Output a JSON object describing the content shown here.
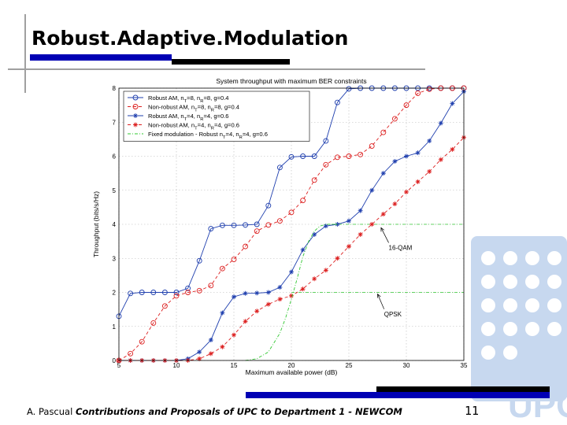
{
  "slide": {
    "title": "Robust.Adaptive.Modulation",
    "footer_author": "A. Pascual",
    "footer_title": "Contributions and Proposals of UPC to Department 1 - NEWCOM",
    "page_number": "11",
    "logo_text": "UPC"
  },
  "colors": {
    "title_bar_blue": "#0000b4",
    "title_bar_black": "#000000",
    "deco_gray": "#a0a0a0",
    "logo_blue": "#c7d8ef",
    "robust": "#1f3fae",
    "nonrobust": "#dc1f1f",
    "fixed": "#32c832"
  },
  "chart_data": {
    "type": "line",
    "title": "System throughput with maximum BER constraints",
    "xlabel": "Maximum available power (dB)",
    "ylabel": "Throughput (bits/s/Hz)",
    "xlim": [
      5,
      35
    ],
    "ylim": [
      0,
      8
    ],
    "xticks": [
      "5",
      "10",
      "15",
      "20",
      "25",
      "30",
      "35"
    ],
    "yticks": [
      "0",
      "1",
      "2",
      "3",
      "4",
      "5",
      "6",
      "7",
      "8"
    ],
    "grid": true,
    "legend_position": "top-left",
    "series": [
      {
        "name": "Robust AM, nT=8, nR=8, g=0.4",
        "legend_main": "Robust AM, n",
        "legend_sub1": "T",
        "legend_mid": "=8, n",
        "legend_sub2": "R",
        "legend_end": "=8, g=0.4",
        "color": "#1f3fae",
        "marker": "circle",
        "dash": "solid",
        "x": [
          5,
          6,
          7,
          8,
          9,
          10,
          11,
          12,
          13,
          14,
          15,
          16,
          17,
          18,
          19,
          20,
          21,
          22,
          23,
          24,
          25,
          26,
          27,
          28,
          29,
          30,
          31,
          32,
          33,
          34,
          35
        ],
        "y": [
          1.3,
          1.97,
          2.0,
          2.0,
          2.0,
          2.0,
          2.12,
          2.93,
          3.87,
          3.97,
          3.97,
          3.98,
          4.0,
          4.55,
          5.67,
          5.98,
          6.0,
          6.0,
          6.45,
          7.58,
          7.98,
          8.0,
          8.0,
          8.0,
          8.0,
          8.0,
          8.0,
          8.0,
          8.0,
          8.0,
          8.0
        ]
      },
      {
        "name": "Non-robust AM, nT=8, nR=8, g=0.4",
        "legend_main": "Non-robust AM, n",
        "legend_sub1": "T",
        "legend_mid": "=8, n",
        "legend_sub2": "R",
        "legend_end": "=8, g=0.4",
        "color": "#dc1f1f",
        "marker": "circle",
        "dash": "dashed",
        "x": [
          5,
          6,
          7,
          8,
          9,
          10,
          11,
          12,
          13,
          14,
          15,
          16,
          17,
          18,
          19,
          20,
          21,
          22,
          23,
          24,
          25,
          26,
          27,
          28,
          29,
          30,
          31,
          32,
          33,
          34,
          35
        ],
        "y": [
          0.0,
          0.2,
          0.55,
          1.1,
          1.6,
          1.9,
          2.0,
          2.05,
          2.2,
          2.7,
          2.97,
          3.35,
          3.8,
          3.98,
          4.1,
          4.35,
          4.7,
          5.3,
          5.75,
          5.97,
          6.0,
          6.05,
          6.3,
          6.7,
          7.1,
          7.5,
          7.85,
          7.97,
          8.0,
          8.0,
          8.0
        ]
      },
      {
        "name": "Robust AM, nT=4, nR=4, g=0.6",
        "legend_main": "Robust AM, n",
        "legend_sub1": "T",
        "legend_mid": "=4, n",
        "legend_sub2": "R",
        "legend_end": "=4, g=0.6",
        "color": "#1f3fae",
        "marker": "star",
        "dash": "solid",
        "x": [
          5,
          6,
          7,
          8,
          9,
          10,
          11,
          12,
          13,
          14,
          15,
          16,
          17,
          18,
          19,
          20,
          21,
          22,
          23,
          24,
          25,
          26,
          27,
          28,
          29,
          30,
          31,
          32,
          33,
          34,
          35
        ],
        "y": [
          0.0,
          0.0,
          0.0,
          0.0,
          0.0,
          0.0,
          0.05,
          0.25,
          0.6,
          1.4,
          1.87,
          1.97,
          1.98,
          2.0,
          2.15,
          2.6,
          3.25,
          3.7,
          3.95,
          4.0,
          4.1,
          4.4,
          5.0,
          5.5,
          5.85,
          6.0,
          6.1,
          6.45,
          6.97,
          7.55,
          7.9
        ]
      },
      {
        "name": "Non-robust AM, nT=4, nR=4, g=0.6",
        "legend_main": "Non-robust AM, n",
        "legend_sub1": "T",
        "legend_mid": "=4, n",
        "legend_sub2": "R",
        "legend_end": "=4, g=0.6",
        "color": "#dc1f1f",
        "marker": "star",
        "dash": "dashed",
        "x": [
          5,
          6,
          7,
          8,
          9,
          10,
          11,
          12,
          13,
          14,
          15,
          16,
          17,
          18,
          19,
          20,
          21,
          22,
          23,
          24,
          25,
          26,
          27,
          28,
          29,
          30,
          31,
          32,
          33,
          34,
          35
        ],
        "y": [
          0.0,
          0.0,
          0.0,
          0.0,
          0.0,
          0.0,
          0.0,
          0.05,
          0.2,
          0.4,
          0.75,
          1.15,
          1.45,
          1.65,
          1.8,
          1.9,
          2.1,
          2.4,
          2.65,
          3.0,
          3.35,
          3.7,
          4.0,
          4.3,
          4.6,
          4.95,
          5.25,
          5.55,
          5.9,
          6.2,
          6.55
        ]
      },
      {
        "name": "Fixed modulation - Robust nT=4, nR=4, g=0.6",
        "legend_main": "Fixed modulation - Robust n",
        "legend_sub1": "T",
        "legend_mid": "=4, n",
        "legend_sub2": "R",
        "legend_end": "=4, g=0.6",
        "color": "#32c832",
        "marker": "none",
        "dash": "dashdot",
        "x": [
          16,
          17,
          18,
          19,
          19.5,
          20,
          20.5,
          21,
          21.5,
          22,
          22.5,
          23,
          24
        ],
        "y": [
          0.0,
          0.05,
          0.25,
          0.8,
          1.25,
          1.8,
          2.4,
          3.05,
          3.5,
          3.8,
          3.95,
          4.0,
          4.0
        ]
      }
    ],
    "reference_lines": [
      {
        "y": 2,
        "x_from": 20,
        "x_to": 35
      },
      {
        "y": 4,
        "x_from": 23.5,
        "x_to": 35
      }
    ],
    "annotations": [
      {
        "text": "16-QAM",
        "x": 28.6,
        "y": 3.25,
        "arrow_to_x": 27.8,
        "arrow_to_y": 3.9
      },
      {
        "text": "QPSK",
        "x": 28.2,
        "y": 1.3,
        "arrow_to_x": 27.5,
        "arrow_to_y": 1.95
      }
    ]
  }
}
